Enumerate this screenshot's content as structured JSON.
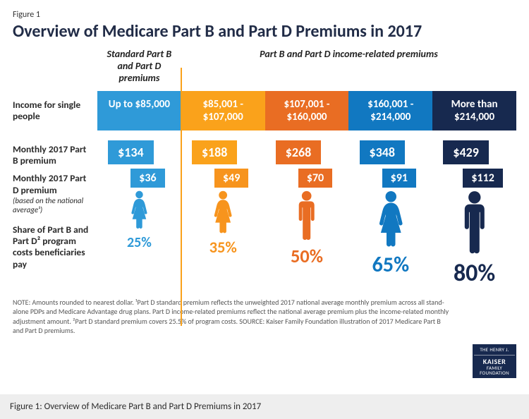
{
  "figure_number": "Figure 1",
  "title": "Overview of Medicare Part B and Part D Premiums in 2017",
  "subheads": {
    "left": "Standard Part B and Part D premiums",
    "right": "Part B and Part D income-related premiums"
  },
  "row_labels": {
    "income": "Income for single people",
    "partB": "Monthly 2017 Part B premium",
    "partD_main": "Monthly 2017 Part D premium",
    "partD_sub": "(based on the national average¹)",
    "share": "Share of Part B and Part D² program costs beneficiaries pay"
  },
  "columns": [
    {
      "income": "Up to $85,000",
      "partB": "$134",
      "partD": "$36",
      "share": "25%",
      "color": "#2f9ad8",
      "color_deep": "#2f9ad8",
      "gender": "f"
    },
    {
      "income": "$85,001 - $107,000",
      "partB": "$188",
      "partD": "$49",
      "share": "35%",
      "color": "#faa21b",
      "color_deep": "#f7941d",
      "gender": "f"
    },
    {
      "income": "$107,001 - $160,000",
      "partB": "$268",
      "partD": "$70",
      "share": "50%",
      "color": "#e96d23",
      "color_deep": "#e96d23",
      "gender": "m"
    },
    {
      "income": "$160,001 - $214,000",
      "partB": "$348",
      "partD": "$91",
      "share": "65%",
      "color": "#1178c1",
      "color_deep": "#1178c1",
      "gender": "f"
    },
    {
      "income": "More than $214,000",
      "partB": "$429",
      "partD": "$112",
      "share": "80%",
      "color": "#17294f",
      "color_deep": "#17294f",
      "gender": "m"
    }
  ],
  "scale_min": 25,
  "scale_max": 80,
  "note": "NOTE: Amounts rounded to nearest dollar. ¹Part D standard premium reflects the unweighted 2017 national average monthly premium across all stand-alone PDPs and Medicare Advantage drug plans. Part D income-related premiums reflect the national average premium plus the income-related monthly adjustment amount. ²Part D standard premium covers 25.5% of program costs. SOURCE: Kaiser Family Foundation illustration of 2017 Medicare Part B and Part D premiums.",
  "logo": {
    "top": "THE HENRY J.",
    "mid": "KAISER",
    "bot": "FAMILY FOUNDATION"
  },
  "caption": "Figure 1: Overview of Medicare Part B and Part D Premiums in 2017"
}
